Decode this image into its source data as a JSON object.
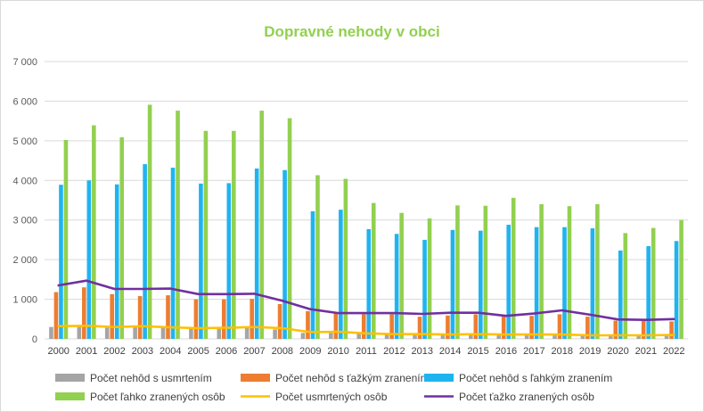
{
  "chart_data": {
    "type": "bar",
    "title": "Dopravné nehody v obci",
    "xlabel": "",
    "ylabel": "",
    "ylim": [
      0,
      7000
    ],
    "y_ticks": [
      "0",
      "1 000",
      "2 000",
      "3 000",
      "4 000",
      "5 000",
      "6 000",
      "7 000"
    ],
    "grid": true,
    "legend_position": "bottom",
    "categories": [
      "2000",
      "2001",
      "2002",
      "2003",
      "2004",
      "2005",
      "2006",
      "2007",
      "2008",
      "2009",
      "2010",
      "2011",
      "2012",
      "2013",
      "2014",
      "2015",
      "2016",
      "2017",
      "2018",
      "2019",
      "2020",
      "2021",
      "2022"
    ],
    "series": [
      {
        "name": "Počet nehôd s usmrtením",
        "kind": "bar",
        "color": "#a5a5a5",
        "values": [
          300,
          300,
          280,
          290,
          270,
          250,
          260,
          280,
          240,
          150,
          150,
          130,
          120,
          110,
          120,
          110,
          110,
          110,
          100,
          90,
          90,
          100,
          100
        ]
      },
      {
        "name": "Počet nehôd s ťažkým zranením",
        "kind": "bar",
        "color": "#ed7d31",
        "values": [
          1180,
          1300,
          1130,
          1080,
          1100,
          1000,
          1000,
          1010,
          880,
          700,
          660,
          620,
          620,
          560,
          590,
          620,
          580,
          580,
          620,
          560,
          460,
          450,
          440
        ]
      },
      {
        "name": "Počet nehôd s ľahkým zranením",
        "kind": "bar",
        "color": "#1fb4f0",
        "values": [
          3890,
          4000,
          3900,
          4410,
          4320,
          3920,
          3930,
          4300,
          4260,
          3220,
          3260,
          2770,
          2650,
          2500,
          2750,
          2730,
          2880,
          2820,
          2820,
          2790,
          2230,
          2340,
          2470
        ]
      },
      {
        "name": "Počet ľahko zranených osôb",
        "kind": "bar",
        "color": "#92d050",
        "values": [
          5020,
          5390,
          5090,
          5910,
          5760,
          5250,
          5250,
          5760,
          5570,
          4130,
          4040,
          3430,
          3180,
          3040,
          3370,
          3360,
          3560,
          3400,
          3350,
          3400,
          2670,
          2800,
          3000
        ]
      },
      {
        "name": "Počet usmrtených osôb",
        "kind": "line",
        "color": "#ffc000",
        "values": [
          320,
          330,
          300,
          320,
          290,
          270,
          280,
          300,
          270,
          170,
          180,
          140,
          120,
          120,
          110,
          120,
          110,
          110,
          110,
          90,
          90,
          90,
          100
        ]
      },
      {
        "name": "Počet ťažko zranených osôb",
        "kind": "line",
        "color": "#7030a0",
        "values": [
          1350,
          1470,
          1260,
          1260,
          1270,
          1130,
          1130,
          1140,
          960,
          750,
          650,
          650,
          650,
          630,
          660,
          660,
          580,
          640,
          720,
          610,
          490,
          480,
          500
        ]
      }
    ]
  }
}
